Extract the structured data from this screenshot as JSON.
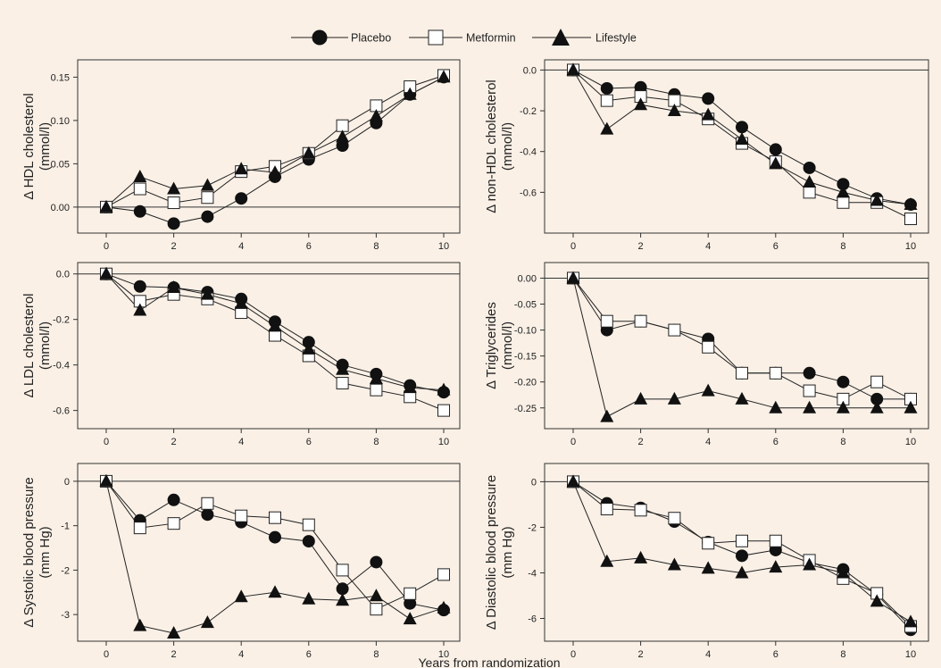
{
  "legend": {
    "placebo": "Placebo",
    "metformin": "Metformin",
    "lifestyle": "Lifestyle"
  },
  "xlabel": "Years from randomization",
  "chart_data": [
    {
      "type": "line",
      "ylabel_line1": "Δ HDL cholesterol",
      "ylabel_line2": "(mmol/l)",
      "x": [
        0,
        1,
        2,
        3,
        4,
        5,
        6,
        7,
        8,
        9,
        10
      ],
      "xlim": [
        0,
        10
      ],
      "xticks": [
        0,
        2,
        4,
        6,
        8,
        10
      ],
      "ylim": [
        -0.03,
        0.17
      ],
      "yticks": [
        0.0,
        0.05,
        0.1,
        0.15
      ],
      "ytick_labels": [
        "0.00",
        "0.05",
        "0.10",
        "0.15"
      ],
      "zero_line": true,
      "series": [
        {
          "name": "Placebo",
          "values": [
            0.0,
            -0.005,
            -0.019,
            -0.011,
            0.01,
            0.035,
            0.055,
            0.071,
            0.097,
            0.13,
            0.15
          ]
        },
        {
          "name": "Metformin",
          "values": [
            0.0,
            0.021,
            0.005,
            0.011,
            0.041,
            0.047,
            0.062,
            0.094,
            0.117,
            0.139,
            0.152
          ]
        },
        {
          "name": "Lifestyle",
          "values": [
            0.0,
            0.035,
            0.021,
            0.025,
            0.044,
            0.04,
            0.062,
            0.081,
            0.105,
            0.13,
            0.15
          ]
        }
      ]
    },
    {
      "type": "line",
      "ylabel_line1": "Δ non-HDL cholesterol",
      "ylabel_line2": "(mmol/l)",
      "x": [
        0,
        1,
        2,
        3,
        4,
        5,
        6,
        7,
        8,
        9,
        10
      ],
      "xlim": [
        0,
        10
      ],
      "xticks": [
        0,
        2,
        4,
        6,
        8,
        10
      ],
      "ylim": [
        -0.8,
        0.05
      ],
      "yticks": [
        0.0,
        -0.2,
        -0.4,
        -0.6
      ],
      "ytick_labels": [
        "0.0",
        "-0.2",
        "-0.4",
        "-0.6"
      ],
      "zero_line": true,
      "series": [
        {
          "name": "Placebo",
          "values": [
            0.0,
            -0.09,
            -0.085,
            -0.12,
            -0.14,
            -0.28,
            -0.39,
            -0.48,
            -0.56,
            -0.63,
            -0.66
          ]
        },
        {
          "name": "Metformin",
          "values": [
            0.0,
            -0.15,
            -0.13,
            -0.15,
            -0.24,
            -0.36,
            -0.45,
            -0.6,
            -0.65,
            -0.65,
            -0.73
          ]
        },
        {
          "name": "Lifestyle",
          "values": [
            0.0,
            -0.29,
            -0.17,
            -0.2,
            -0.22,
            -0.34,
            -0.46,
            -0.55,
            -0.6,
            -0.64,
            -0.66
          ]
        }
      ]
    },
    {
      "type": "line",
      "ylabel_line1": "Δ LDL cholesterol",
      "ylabel_line2": "(mmol/l)",
      "x": [
        0,
        1,
        2,
        3,
        4,
        5,
        6,
        7,
        8,
        9,
        10
      ],
      "xlim": [
        0,
        10
      ],
      "xticks": [
        0,
        2,
        4,
        6,
        8,
        10
      ],
      "ylim": [
        -0.68,
        0.05
      ],
      "yticks": [
        0.0,
        -0.2,
        -0.4,
        -0.6
      ],
      "ytick_labels": [
        "0.0",
        "-0.2",
        "-0.4",
        "-0.6"
      ],
      "zero_line": true,
      "series": [
        {
          "name": "Placebo",
          "values": [
            0.0,
            -0.055,
            -0.06,
            -0.08,
            -0.11,
            -0.21,
            -0.3,
            -0.4,
            -0.44,
            -0.49,
            -0.52
          ]
        },
        {
          "name": "Metformin",
          "values": [
            0.0,
            -0.12,
            -0.09,
            -0.11,
            -0.17,
            -0.27,
            -0.36,
            -0.48,
            -0.51,
            -0.54,
            -0.6
          ]
        },
        {
          "name": "Lifestyle",
          "values": [
            0.0,
            -0.16,
            -0.06,
            -0.09,
            -0.13,
            -0.23,
            -0.33,
            -0.42,
            -0.46,
            -0.5,
            -0.51
          ]
        }
      ]
    },
    {
      "type": "line",
      "ylabel_line1": "Δ Triglycerides",
      "ylabel_line2": "(mmol/l)",
      "x": [
        0,
        1,
        2,
        3,
        4,
        5,
        6,
        7,
        8,
        9,
        10
      ],
      "xlim": [
        0,
        10
      ],
      "xticks": [
        0,
        2,
        4,
        6,
        8,
        10
      ],
      "ylim": [
        -0.29,
        0.03
      ],
      "yticks": [
        0.0,
        -0.05,
        -0.1,
        -0.15,
        -0.2,
        -0.25
      ],
      "ytick_labels": [
        "0.00",
        "-0.05",
        "-0.10",
        "-0.15",
        "-0.20",
        "-0.25"
      ],
      "zero_line": true,
      "series": [
        {
          "name": "Placebo",
          "values": [
            0.0,
            -0.1,
            -0.083,
            -0.1,
            -0.117,
            -0.183,
            -0.183,
            -0.183,
            -0.2,
            -0.233,
            -0.233
          ]
        },
        {
          "name": "Metformin",
          "values": [
            0.0,
            -0.083,
            -0.083,
            -0.1,
            -0.133,
            -0.183,
            -0.183,
            -0.217,
            -0.233,
            -0.2,
            -0.233
          ]
        },
        {
          "name": "Lifestyle",
          "values": [
            0.0,
            -0.267,
            -0.233,
            -0.233,
            -0.217,
            -0.233,
            -0.25,
            -0.25,
            -0.25,
            -0.25,
            -0.25
          ]
        }
      ]
    },
    {
      "type": "line",
      "ylabel_line1": "Δ Systolic blood pressure",
      "ylabel_line2": "(mm Hg)",
      "x": [
        0,
        1,
        2,
        3,
        4,
        5,
        6,
        7,
        8,
        9,
        10
      ],
      "xlim": [
        0,
        10
      ],
      "xticks": [
        0,
        2,
        4,
        6,
        8,
        10
      ],
      "ylim": [
        -3.6,
        0.4
      ],
      "yticks": [
        0,
        -1,
        -2,
        -3
      ],
      "ytick_labels": [
        "0",
        "-1",
        "-2",
        "-3"
      ],
      "zero_line": true,
      "series": [
        {
          "name": "Placebo",
          "values": [
            0,
            -0.88,
            -0.42,
            -0.75,
            -0.92,
            -1.26,
            -1.35,
            -2.42,
            -1.82,
            -2.75,
            -2.9
          ]
        },
        {
          "name": "Metformin",
          "values": [
            0,
            -1.05,
            -0.95,
            -0.5,
            -0.78,
            -0.82,
            -0.98,
            -2.0,
            -2.88,
            -2.53,
            -2.1
          ]
        },
        {
          "name": "Lifestyle",
          "values": [
            0,
            -3.25,
            -3.42,
            -3.18,
            -2.6,
            -2.5,
            -2.65,
            -2.68,
            -2.58,
            -3.1,
            -2.85
          ]
        }
      ]
    },
    {
      "type": "line",
      "ylabel_line1": "Δ Diastolic blood pressure",
      "ylabel_line2": "(mm Hg)",
      "x": [
        0,
        1,
        2,
        3,
        4,
        5,
        6,
        7,
        8,
        9,
        10
      ],
      "xlim": [
        0,
        10
      ],
      "xticks": [
        0,
        2,
        4,
        6,
        8,
        10
      ],
      "ylim": [
        -7.0,
        0.8
      ],
      "yticks": [
        0,
        -2,
        -4,
        -6
      ],
      "ytick_labels": [
        "0",
        "-2",
        "-4",
        "-6"
      ],
      "zero_line": true,
      "series": [
        {
          "name": "Placebo",
          "values": [
            0,
            -0.95,
            -1.15,
            -1.75,
            -2.65,
            -3.25,
            -3.0,
            -3.55,
            -3.85,
            -4.95,
            -6.5
          ]
        },
        {
          "name": "Metformin",
          "values": [
            0,
            -1.2,
            -1.25,
            -1.6,
            -2.7,
            -2.6,
            -2.6,
            -3.45,
            -4.25,
            -4.9,
            -6.35
          ]
        },
        {
          "name": "Lifestyle",
          "values": [
            0,
            -3.5,
            -3.35,
            -3.65,
            -3.8,
            -4.0,
            -3.75,
            -3.65,
            -4.0,
            -5.25,
            -6.15
          ]
        }
      ]
    }
  ]
}
